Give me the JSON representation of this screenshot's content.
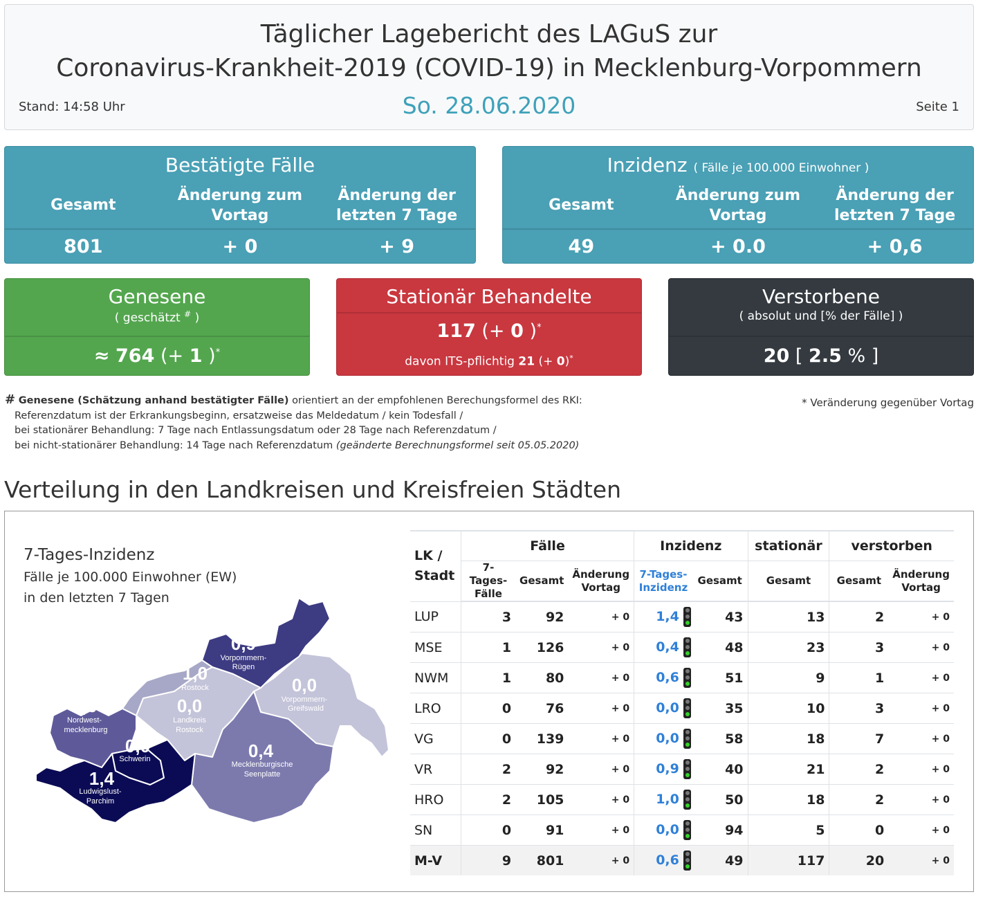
{
  "header": {
    "title_line1": "Täglicher Lagebericht des LAGuS zur",
    "title_line2": "Coronavirus-Krankheit-2019 (COVID-19) in Mecklenburg-Vorpommern",
    "date": "So. 28.06.2020",
    "stand": "Stand: 14:58 Uhr",
    "seite": "Seite 1"
  },
  "faelle": {
    "title": "Bestätigte Fälle",
    "col1": "Gesamt",
    "col2_a": "Änderung zum",
    "col2_b": "Vortag",
    "col3_a": "Änderung der",
    "col3_b": "letzten 7 Tage",
    "v1": "801",
    "v2": "+ 0",
    "v3": "+ 9"
  },
  "inzidenz": {
    "title": "Inzidenz",
    "subtitle": "( Fälle je 100.000 Einwohner )",
    "col1": "Gesamt",
    "col2_a": "Änderung zum",
    "col2_b": "Vortag",
    "col3_a": "Änderung der",
    "col3_b": "letzten 7 Tage",
    "v1": "49",
    "v2": "+ 0.0",
    "v3": "+ 0,6"
  },
  "genesene": {
    "title": "Genesene",
    "sub_a": "( geschätzt",
    "sub_hash": "#",
    "sub_b": ")",
    "approx": "≈",
    "value": "764",
    "change_pre": "(+",
    "change": "1",
    "change_post": ")",
    "star": "*"
  },
  "stationaer": {
    "title": "Stationär Behandelte",
    "value": "117",
    "change_pre": "(+",
    "change": "0",
    "change_post": ")",
    "star": "*",
    "its_text": "davon ITS-pflichtig",
    "its_value": "21",
    "its_pre": "(+",
    "its_change": "0",
    "its_post": ")",
    "its_star": "*"
  },
  "verstorbene": {
    "title": "Verstorbene",
    "sub": "( absolut und [% der Fälle] )",
    "value": "20",
    "br_open": "[",
    "pct": "2.5",
    "pct_sign": "%",
    "br_close": "]"
  },
  "notes": {
    "hash": "#",
    "bold": "Genesene (Schätzung anhand bestätigter Fälle)",
    "line1_rest": "orientiert an der empfohlenen Berechungsformel des RKI:",
    "line2": "Referenzdatum ist der Erkrankungsbeginn, ersatzweise das Meldedatum / kein Todesfall /",
    "line3": "bei stationärer Behandlung: 7 Tage nach Entlassungsdatum oder 28 Tage nach Referenzdatum /",
    "line4": "bei nicht-stationärer Behandlung: 14 Tage nach Referenzdatum",
    "line4_italic": "(geänderte Berechnungsformel seit 05.05.2020)",
    "change_note": "* Veränderung gegenüber Vortag"
  },
  "section_title": "Verteilung in den Landkreisen und Kreisfreien Städten",
  "map": {
    "title": "7-Tages-Inzidenz",
    "line2": "Fälle je 100.000 Einwohner (EW)",
    "line3": "in den letzten 7 Tagen",
    "regions": [
      {
        "value": "0,9",
        "name1": "Vorpommern-",
        "name2": "Rügen",
        "color": "#3d3b82"
      },
      {
        "value": "1,0",
        "name1": "Rostock",
        "name2": "",
        "color": "#a7a7c7"
      },
      {
        "value": "0,0",
        "name1": "Vorpommern-",
        "name2": "Greifswald",
        "color": "#c3c3d9"
      },
      {
        "value": "0,6",
        "name1": "Nordwest-",
        "name2": "mecklenburg",
        "color": "#5e5a9a"
      },
      {
        "value": "0,0",
        "name1": "Landkreis",
        "name2": "Rostock",
        "color": "#c3c3d9"
      },
      {
        "value": "0,0",
        "name1": "Schwerin",
        "name2": "",
        "color": "#c3c3d9"
      },
      {
        "value": "0,4",
        "name1": "Mecklenburgische",
        "name2": "Seenplatte",
        "color": "#7c7aad"
      },
      {
        "value": "1,4",
        "name1": "Ludwigslust-",
        "name2": "Parchim",
        "color": "#0b0b55"
      }
    ]
  },
  "table": {
    "h_lk1": "LK /",
    "h_lk2": "Stadt",
    "h_faelle": "Fälle",
    "h_inzidenz": "Inzidenz",
    "h_stationaer": "stationär",
    "h_verstorben": "verstorben",
    "s_7tf1": "7-Tages-",
    "s_7tf2": "Fälle",
    "s_gesamt": "Gesamt",
    "s_aend1": "Änderung",
    "s_aend2": "Vortag",
    "s_7ti1": "7-Tages-",
    "s_7ti2": "Inzidenz",
    "rows": [
      {
        "name": "LUP",
        "f7": "3",
        "fg": "92",
        "fa": "+ 0",
        "i7": "1,4",
        "ig": "43",
        "st": "13",
        "vg": "2",
        "va": "+ 0"
      },
      {
        "name": "MSE",
        "f7": "1",
        "fg": "126",
        "fa": "+ 0",
        "i7": "0,4",
        "ig": "48",
        "st": "23",
        "vg": "3",
        "va": "+ 0"
      },
      {
        "name": "NWM",
        "f7": "1",
        "fg": "80",
        "fa": "+ 0",
        "i7": "0,6",
        "ig": "51",
        "st": "9",
        "vg": "1",
        "va": "+ 0"
      },
      {
        "name": "LRO",
        "f7": "0",
        "fg": "76",
        "fa": "+ 0",
        "i7": "0,0",
        "ig": "35",
        "st": "10",
        "vg": "3",
        "va": "+ 0"
      },
      {
        "name": "VG",
        "f7": "0",
        "fg": "139",
        "fa": "+ 0",
        "i7": "0,0",
        "ig": "58",
        "st": "18",
        "vg": "7",
        "va": "+ 0"
      },
      {
        "name": "VR",
        "f7": "2",
        "fg": "92",
        "fa": "+ 0",
        "i7": "0,9",
        "ig": "40",
        "st": "21",
        "vg": "2",
        "va": "+ 0"
      },
      {
        "name": "HRO",
        "f7": "2",
        "fg": "105",
        "fa": "+ 0",
        "i7": "1,0",
        "ig": "50",
        "st": "18",
        "vg": "2",
        "va": "+ 0"
      },
      {
        "name": "SN",
        "f7": "0",
        "fg": "91",
        "fa": "+ 0",
        "i7": "0,0",
        "ig": "94",
        "st": "5",
        "vg": "0",
        "va": "+ 0"
      },
      {
        "name": "M-V",
        "f7": "9",
        "fg": "801",
        "fa": "+ 0",
        "i7": "0,6",
        "ig": "49",
        "st": "117",
        "vg": "20",
        "va": "+ 0"
      }
    ]
  }
}
